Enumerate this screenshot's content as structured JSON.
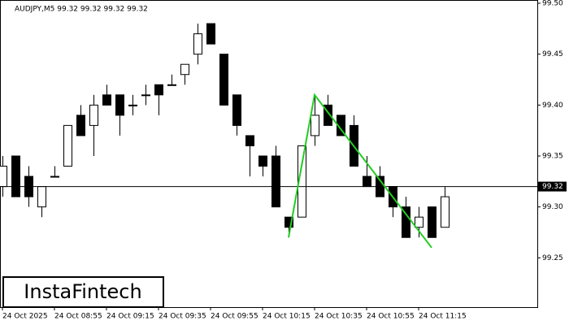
{
  "chart_data": {
    "type": "candlestick",
    "title": "AUDJPY,M5  99.32 99.32 99.32 99.32",
    "categories": [
      "24 Oct 2025",
      null,
      null,
      null,
      "24 Oct 08:55",
      null,
      null,
      null,
      "24 Oct 09:15",
      null,
      null,
      null,
      "24 Oct 09:35",
      null,
      null,
      null,
      "24 Oct 09:55",
      null,
      null,
      null,
      "24 Oct 10:15",
      null,
      null,
      null,
      "24 Oct 10:35",
      null,
      null,
      null,
      "24 Oct 10:55",
      null,
      null,
      null,
      "24 Oct 11:15",
      null,
      null
    ],
    "open": [
      99.32,
      99.35,
      99.33,
      99.3,
      99.33,
      99.34,
      99.39,
      99.38,
      99.41,
      99.41,
      99.4,
      99.41,
      99.42,
      99.42,
      99.43,
      99.45,
      99.48,
      99.45,
      99.41,
      99.37,
      99.35,
      99.35,
      99.29,
      99.29,
      99.37,
      99.4,
      99.39,
      99.38,
      99.33,
      99.33,
      99.32,
      99.3,
      99.28,
      99.3,
      99.28
    ],
    "high": [
      99.35,
      99.35,
      99.34,
      99.32,
      99.34,
      99.38,
      99.4,
      99.41,
      99.42,
      99.41,
      99.41,
      99.42,
      99.42,
      99.43,
      99.44,
      99.48,
      99.48,
      99.45,
      99.41,
      99.37,
      99.35,
      99.36,
      99.29,
      99.36,
      99.41,
      99.41,
      99.39,
      99.39,
      99.35,
      99.34,
      99.32,
      99.31,
      99.3,
      99.3,
      99.32
    ],
    "low": [
      99.31,
      99.31,
      99.3,
      99.29,
      99.33,
      99.34,
      99.37,
      99.35,
      99.4,
      99.37,
      99.39,
      99.4,
      99.39,
      99.42,
      99.42,
      99.44,
      99.46,
      99.4,
      99.37,
      99.33,
      99.33,
      99.3,
      99.27,
      99.29,
      99.36,
      99.38,
      99.37,
      99.34,
      99.32,
      99.31,
      99.29,
      99.27,
      99.27,
      99.27,
      99.28
    ],
    "close": [
      99.34,
      99.31,
      99.31,
      99.32,
      99.33,
      99.38,
      99.37,
      99.4,
      99.4,
      99.39,
      99.4,
      99.41,
      99.41,
      99.42,
      99.44,
      99.47,
      99.46,
      99.4,
      99.38,
      99.36,
      99.34,
      99.3,
      99.28,
      99.36,
      99.39,
      99.38,
      99.37,
      99.34,
      99.32,
      99.31,
      99.3,
      99.27,
      99.29,
      99.27,
      99.31
    ],
    "last": 99.32,
    "pattern": {
      "color": "#22cc22",
      "x": [
        22,
        24,
        33
      ],
      "values": [
        99.27,
        99.41,
        99.26
      ]
    },
    "ylim": [
      99.2,
      99.5
    ],
    "yticks": [
      {
        "value": 99.5,
        "label": "99.50"
      },
      99.45,
      {
        "value": 99.4,
        "label": "99.40"
      },
      99.35,
      {
        "value": 99.3,
        "label": "99.30"
      },
      99.25
    ],
    "logo": "InstaFintech"
  }
}
